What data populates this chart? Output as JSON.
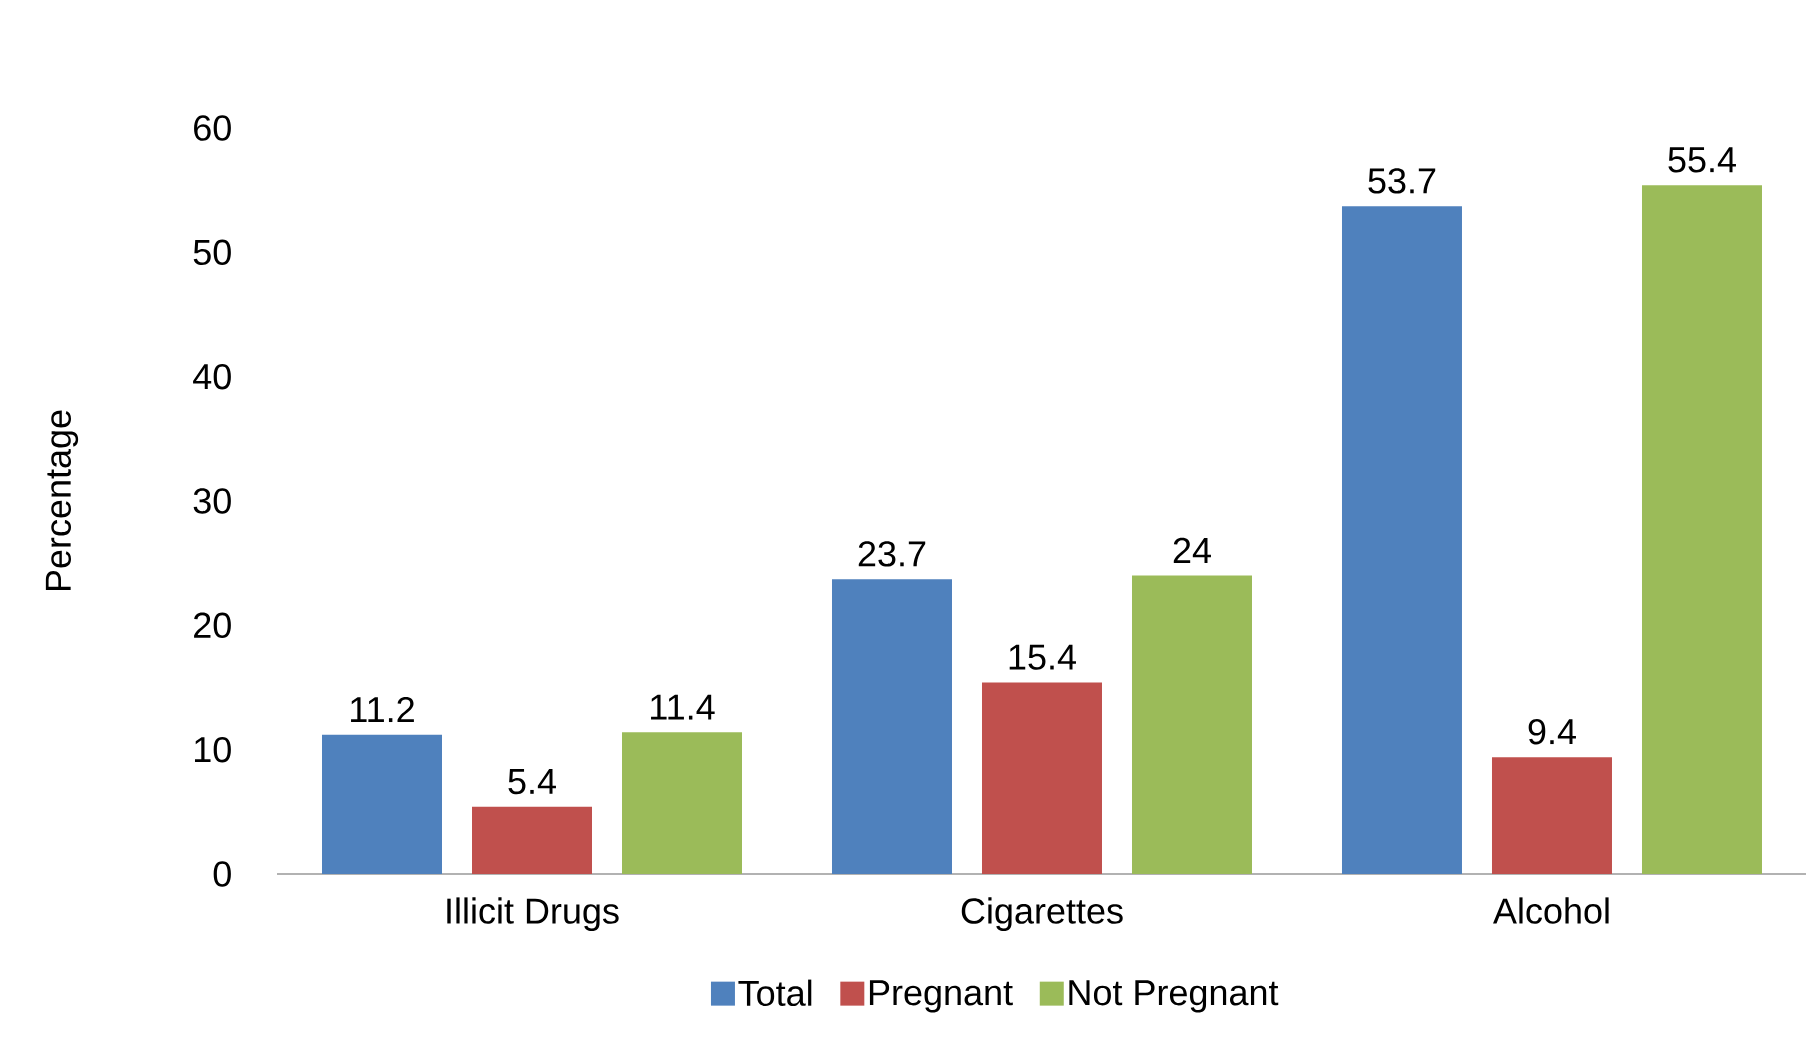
{
  "chart_data": {
    "type": "bar",
    "ylabel": "Percentage",
    "categories": [
      "Illicit Drugs",
      "Cigarettes",
      "Alcohol"
    ],
    "series": [
      {
        "name": "Total",
        "color": "#4f81bd",
        "values": [
          11.2,
          23.7,
          53.7
        ]
      },
      {
        "name": "Pregnant",
        "color": "#c0504d",
        "values": [
          5.4,
          15.4,
          9.4
        ]
      },
      {
        "name": "Not Pregnant",
        "color": "#9bbb59",
        "values": [
          11.4,
          24,
          55.4
        ]
      }
    ],
    "ylim": [
      0,
      60
    ],
    "yticks": [
      0,
      10,
      20,
      30,
      40,
      50,
      60
    ],
    "data_labels": true,
    "legend": "bottom",
    "grid": false
  }
}
